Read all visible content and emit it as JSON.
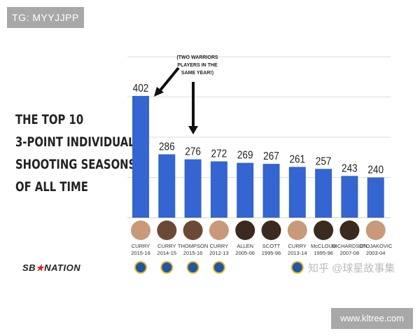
{
  "watermark_top": "TG: MYYJJPP",
  "watermark_bottom": "www.kltree.com",
  "watermark_zh": "知乎 @球星故事集",
  "logo_text": "SB NATION",
  "chart_data": {
    "type": "bar",
    "title_lines": [
      "THE TOP 10",
      "3-POINT INDIVIDUAL",
      "SHOOTING SEASONS",
      "OF ALL TIME"
    ],
    "categories": [
      {
        "name": "CURRY",
        "season": "2015-16",
        "warriors": true
      },
      {
        "name": "CURRY",
        "season": "2014-15",
        "warriors": true
      },
      {
        "name": "THOMPSON",
        "season": "2015-16",
        "warriors": true
      },
      {
        "name": "CURRY",
        "season": "2012-13",
        "warriors": true
      },
      {
        "name": "ALLEN",
        "season": "2005-06",
        "warriors": false
      },
      {
        "name": "SCOTT",
        "season": "1995-96",
        "warriors": false
      },
      {
        "name": "CURRY",
        "season": "2013-14",
        "warriors": true
      },
      {
        "name": "McCLOUD",
        "season": "1995-96",
        "warriors": false
      },
      {
        "name": "RICHARDSON",
        "season": "2007-08",
        "warriors": false
      },
      {
        "name": "STOJAKOVIC",
        "season": "2003-04",
        "warriors": false
      }
    ],
    "values": [
      402,
      286,
      276,
      272,
      269,
      267,
      261,
      257,
      243,
      240
    ],
    "ylim": [
      160,
      480
    ],
    "gridlines": [
      240,
      320,
      400,
      480
    ],
    "grid": true,
    "bar_color": "#3465d0",
    "annotation": "(TWO WARRIORS PLAYERS IN THE SAME YEAR!)"
  }
}
